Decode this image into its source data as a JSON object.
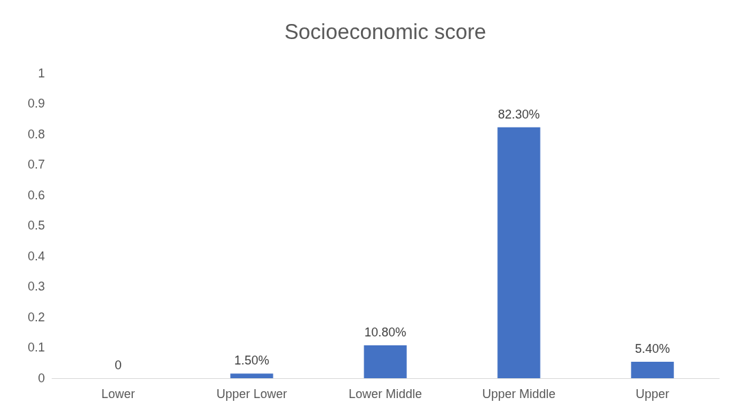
{
  "chart_data": {
    "type": "bar",
    "title": "Socioeconomic score",
    "categories": [
      "Lower",
      "Upper Lower",
      "Lower Middle",
      "Upper Middle",
      "Upper"
    ],
    "values": [
      0,
      0.015,
      0.108,
      0.823,
      0.054
    ],
    "value_labels": [
      "0",
      "1.50%",
      "10.80%",
      "82.30%",
      "5.40%"
    ],
    "color": "#4472c4",
    "ylim": [
      0,
      1
    ],
    "yticks": [
      0,
      0.1,
      0.2,
      0.3,
      0.4,
      0.5,
      0.6,
      0.7,
      0.8,
      0.9,
      1
    ],
    "grid": false
  }
}
